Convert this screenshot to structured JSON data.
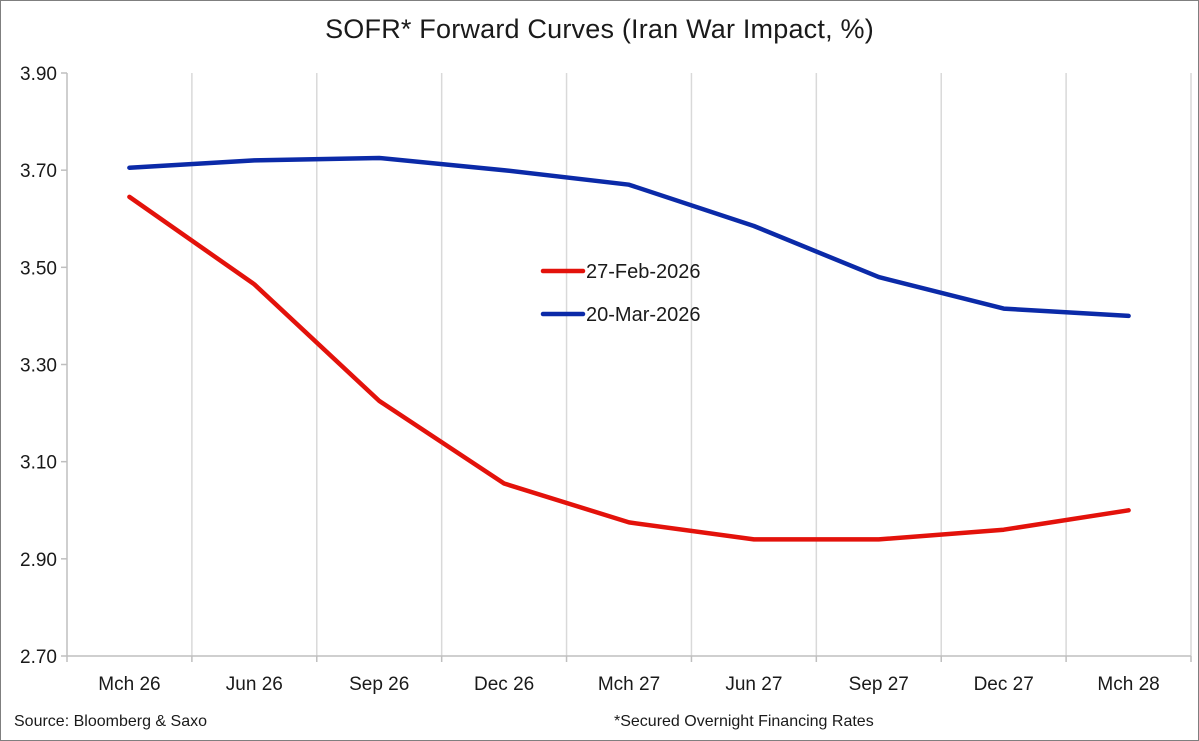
{
  "chart_data": {
    "type": "line",
    "title": "SOFR* Forward Curves (Iran War Impact, %)",
    "categories": [
      "Mch 26",
      "Jun 26",
      "Sep 26",
      "Dec 26",
      "Mch 27",
      "Jun 27",
      "Sep 27",
      "Dec 27",
      "Mch 28"
    ],
    "series": [
      {
        "name": "27-Feb-2026",
        "color": "#e3120b",
        "values": [
          3.645,
          3.465,
          3.225,
          3.055,
          2.975,
          2.94,
          2.94,
          2.96,
          3.0
        ]
      },
      {
        "name": "20-Mar-2026",
        "color": "#0b2aa8",
        "values": [
          3.705,
          3.72,
          3.725,
          3.7,
          3.67,
          3.585,
          3.48,
          3.415,
          3.4
        ]
      }
    ],
    "ylim": [
      2.7,
      3.9
    ],
    "yticks": [
      "2.70",
      "2.90",
      "3.10",
      "3.30",
      "3.50",
      "3.70",
      "3.90"
    ],
    "grid": "vertical",
    "legend_position": "center"
  },
  "footer": {
    "source": "Source: Bloomberg & Saxo",
    "note": "*Secured Overnight Financing Rates"
  }
}
